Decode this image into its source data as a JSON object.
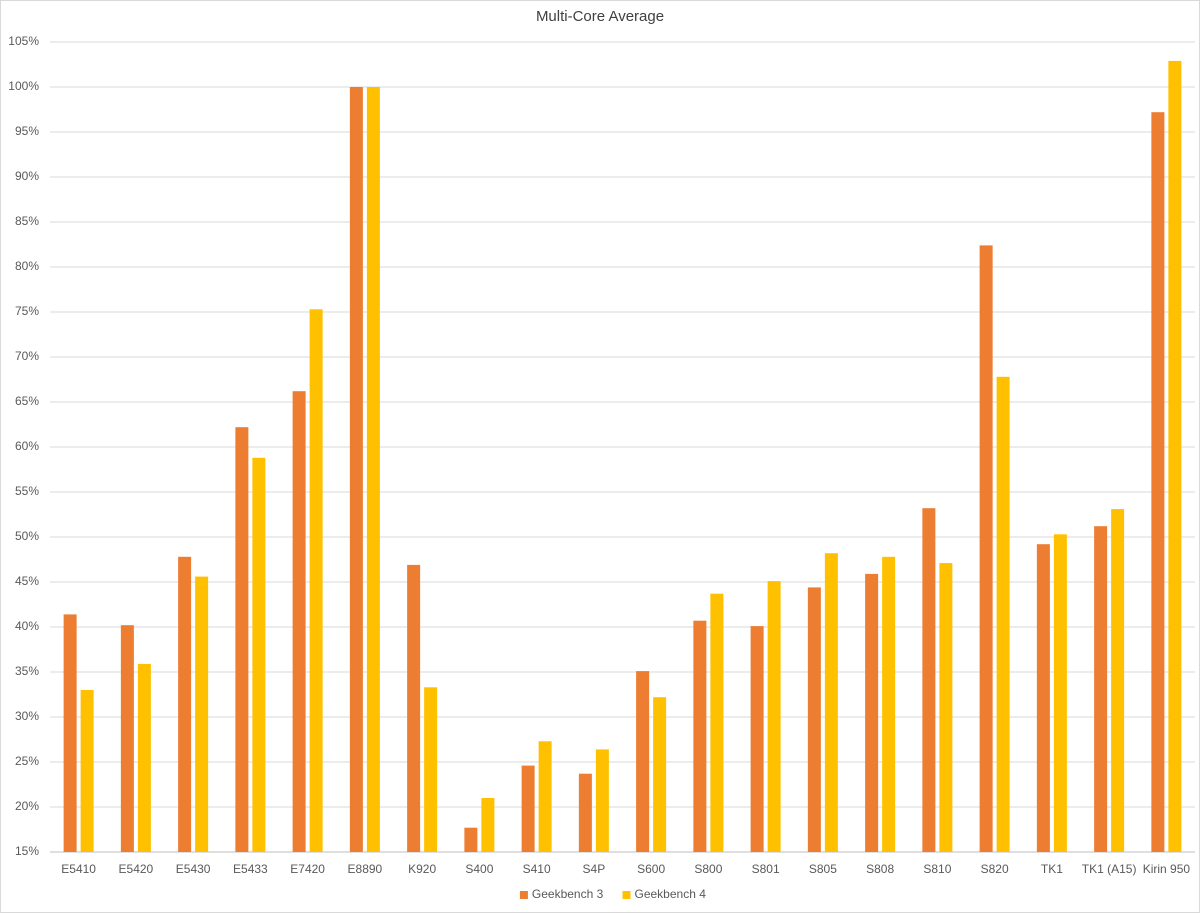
{
  "chart_data": {
    "type": "bar",
    "title": "Multi-Core Average",
    "categories": [
      "E5410",
      "E5420",
      "E5430",
      "E5433",
      "E7420",
      "E8890",
      "K920",
      "S400",
      "S410",
      "S4P",
      "S600",
      "S800",
      "S801",
      "S805",
      "S808",
      "S810",
      "S820",
      "TK1",
      "TK1 (A15)",
      "Kirin 950"
    ],
    "series": [
      {
        "name": "Geekbench 3",
        "color": "#ed7d31",
        "values": [
          41.4,
          40.2,
          47.8,
          62.2,
          66.2,
          100,
          46.9,
          17.7,
          24.6,
          23.7,
          35.1,
          40.7,
          40.1,
          44.4,
          45.9,
          53.2,
          82.4,
          49.2,
          51.2,
          97.2
        ]
      },
      {
        "name": "Geekbench 4",
        "color": "#ffc000",
        "values": [
          33.0,
          35.9,
          45.6,
          58.8,
          75.3,
          100,
          33.3,
          21.0,
          27.3,
          26.4,
          32.2,
          43.7,
          45.1,
          48.2,
          47.8,
          47.1,
          67.8,
          50.3,
          53.1,
          102.9
        ]
      }
    ],
    "ylim": [
      15,
      105
    ],
    "yticks": [
      {
        "value": 15,
        "label": "15%"
      },
      {
        "value": 20,
        "label": "20%"
      },
      {
        "value": 25,
        "label": "25%"
      },
      {
        "value": 30,
        "label": "30%"
      },
      {
        "value": 35,
        "label": "35%"
      },
      {
        "value": 40,
        "label": "40%"
      },
      {
        "value": 45,
        "label": "45%"
      },
      {
        "value": 50,
        "label": "50%"
      },
      {
        "value": 55,
        "label": "55%"
      },
      {
        "value": 60,
        "label": "60%"
      },
      {
        "value": 65,
        "label": "65%"
      },
      {
        "value": 70,
        "label": "70%"
      },
      {
        "value": 75,
        "label": "75%"
      },
      {
        "value": 80,
        "label": "80%"
      },
      {
        "value": 85,
        "label": "85%"
      },
      {
        "value": 90,
        "label": "90%"
      },
      {
        "value": 95,
        "label": "95%"
      },
      {
        "value": 100,
        "label": "100%"
      },
      {
        "value": 105,
        "label": "105%"
      }
    ],
    "grid": true,
    "legend": "bottom"
  }
}
